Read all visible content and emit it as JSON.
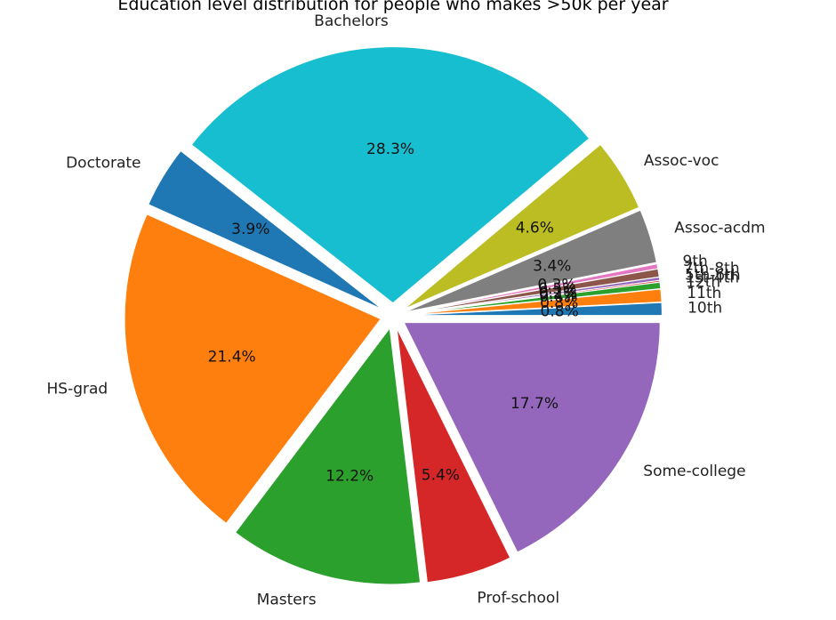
{
  "chart_data": {
    "type": "pie",
    "title": "Education level distribution for people who makes >50k per year",
    "start_angle_deg": 0,
    "direction": "counterclockwise",
    "categories": [
      "10th",
      "11th",
      "12th",
      "1st-4th",
      "5th-6th",
      "7th-8th",
      "9th",
      "Assoc-acdm",
      "Assoc-voc",
      "Bachelors",
      "Doctorate",
      "HS-grad",
      "Masters",
      "Prof-school",
      "Some-college"
    ],
    "values": [
      0.8,
      0.8,
      0.4,
      0.1,
      0.2,
      0.5,
      0.3,
      3.4,
      4.6,
      28.3,
      3.9,
      21.4,
      12.2,
      5.4,
      17.7
    ],
    "value_labels": [
      "0.8%",
      "0.8%",
      "0.4%",
      "0.1%",
      "0.2%",
      "0.5%",
      "0.3%",
      "3.4%",
      "4.6%",
      "28.3%",
      "3.9%",
      "21.4%",
      "12.2%",
      "5.4%",
      "17.7%"
    ],
    "colors": [
      "#1f77b4",
      "#ff7f0e",
      "#2ca02c",
      "#d62728",
      "#9467bd",
      "#8c564b",
      "#e377c2",
      "#7f7f7f",
      "#bcbd22",
      "#17becf",
      "#1f77b4",
      "#ff7f0e",
      "#2ca02c",
      "#d62728",
      "#9467bd"
    ],
    "exploded": true,
    "legend": "none"
  }
}
